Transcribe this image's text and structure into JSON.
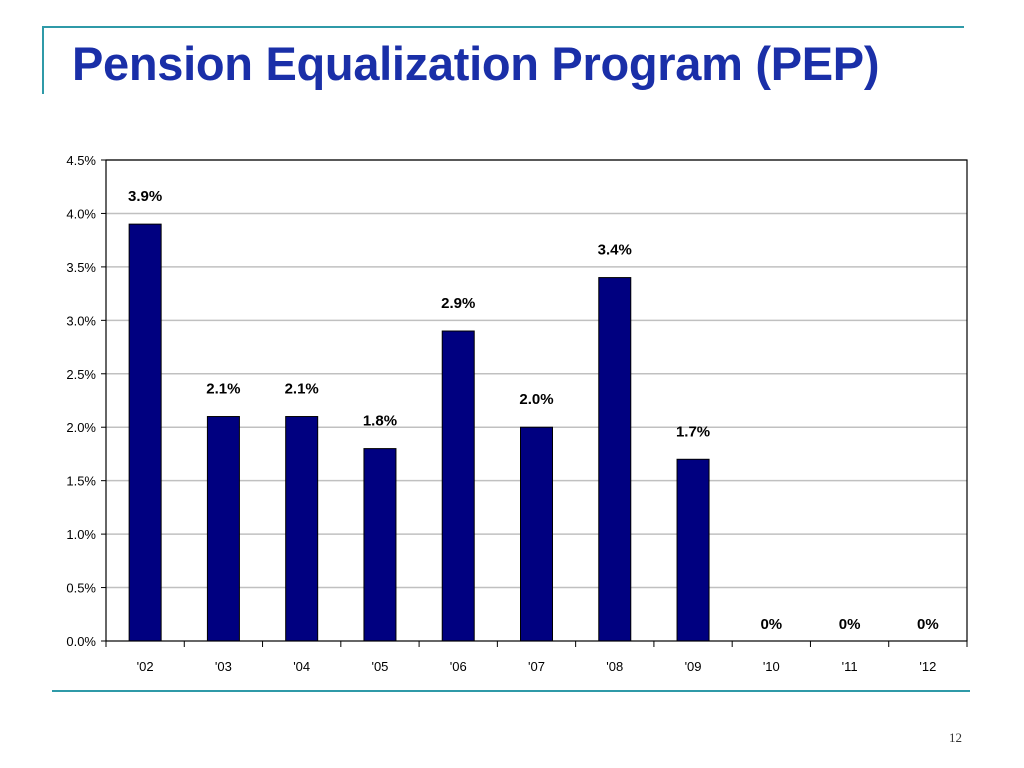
{
  "slide": {
    "title": "Pension Equalization Program (PEP)",
    "page_number": "12"
  },
  "colors": {
    "accent": "#2f9aa8",
    "title": "#1a2fa8",
    "bar": "#000080"
  },
  "chart_data": {
    "type": "bar",
    "title": "",
    "xlabel": "",
    "ylabel": "",
    "categories": [
      "'02",
      "'03",
      "'04",
      "'05",
      "'06",
      "'07",
      "'08",
      "'09",
      "'10",
      "'11",
      "'12"
    ],
    "values": [
      3.9,
      2.1,
      2.1,
      1.8,
      2.9,
      2.0,
      3.4,
      1.7,
      0,
      0,
      0
    ],
    "data_labels": [
      "3.9%",
      "2.1%",
      "2.1%",
      "1.8%",
      "2.9%",
      "2.0%",
      "3.4%",
      "1.7%",
      "0%",
      "0%",
      "0%"
    ],
    "ylim": [
      0,
      4.5
    ],
    "yticks": [
      "0.0%",
      "0.5%",
      "1.0%",
      "1.5%",
      "2.0%",
      "2.5%",
      "3.0%",
      "3.5%",
      "4.0%",
      "4.5%"
    ],
    "grid": true,
    "legend": "none"
  }
}
